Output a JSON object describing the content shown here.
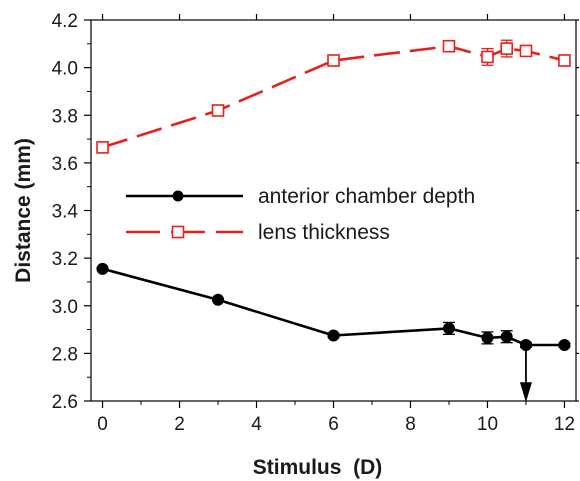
{
  "chart_data": {
    "type": "line",
    "xlabel": "Stimulus  (D)",
    "ylabel": "Distance (mm)",
    "xlim": [
      -0.3,
      12.3
    ],
    "ylim": [
      2.6,
      4.2
    ],
    "xticks": [
      0,
      2,
      4,
      6,
      8,
      10,
      12
    ],
    "yticks": [
      2.6,
      2.8,
      3.0,
      3.2,
      3.4,
      3.6,
      3.8,
      4.0,
      4.2
    ],
    "xtick_labels": [
      "0",
      "2",
      "4",
      "6",
      "8",
      "10",
      "12"
    ],
    "ytick_labels": [
      "2.6",
      "2.8",
      "3.0",
      "3.2",
      "3.4",
      "3.6",
      "3.8",
      "4.0",
      "4.2"
    ],
    "grid": false,
    "legend_position": "center-left",
    "series": [
      {
        "name": "anterior chamber depth",
        "color": "#000000",
        "line_style": "solid",
        "marker": "filled-circle",
        "x": [
          0,
          3,
          6,
          9,
          10,
          10.5,
          11,
          12
        ],
        "y": [
          3.155,
          3.025,
          2.875,
          2.905,
          2.865,
          2.87,
          2.835,
          2.835
        ],
        "error": [
          0.005,
          0.005,
          0.008,
          0.025,
          0.025,
          0.025,
          0.01,
          0.008
        ]
      },
      {
        "name": "lens thickness",
        "color": "#e8201b",
        "line_style": "dashed",
        "marker": "open-square",
        "x": [
          0,
          3,
          6,
          9,
          10,
          10.5,
          11,
          12
        ],
        "y": [
          3.665,
          3.82,
          4.03,
          4.09,
          4.045,
          4.08,
          4.07,
          4.03
        ],
        "error": [
          0.008,
          0.008,
          0.008,
          0.008,
          0.035,
          0.035,
          0.01,
          0.008
        ]
      }
    ],
    "annotations": [
      {
        "type": "arrow",
        "direction": "down",
        "x": 11,
        "y_from": 2.82,
        "y_to": 2.62
      }
    ]
  }
}
